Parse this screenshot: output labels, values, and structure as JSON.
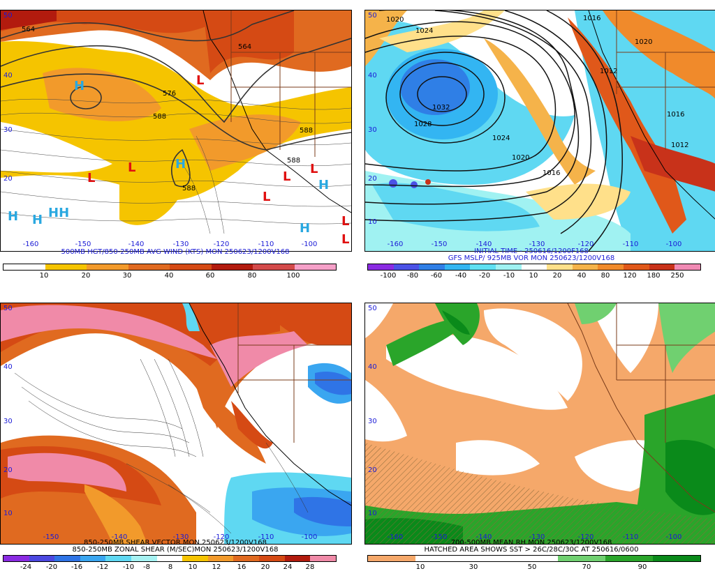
{
  "panels": {
    "tl": {
      "caption": "500MB HGT/850-250MB AVG WIND (KTS) MON 250623/1200V168",
      "contours": [
        "564",
        "576",
        "588",
        "588",
        "564",
        "588",
        "588"
      ],
      "colorbar": {
        "colors": [
          "#ffffff",
          "#f5c400",
          "#f29a2b",
          "#e06a20",
          "#d54a14",
          "#b21b0e",
          "#d34a4a",
          "#f5a0c8"
        ],
        "labels": [
          "10",
          "20",
          "30",
          "40",
          "60",
          "80",
          "100"
        ]
      },
      "lat_labels": [
        "50",
        "40",
        "30",
        "20"
      ],
      "lon_labels": [
        "-160",
        "-150",
        "-140",
        "-130",
        "-120",
        "-110",
        "-100"
      ]
    },
    "tr": {
      "caption_lines": [
        "INITIAL TIME - 250616/1200F168",
        "GFS MSLP/ 925MB VOR MON 250623/1200V168"
      ],
      "contours": [
        "1020",
        "1024",
        "1032",
        "1028",
        "1024",
        "1020",
        "1016",
        "1016",
        "1012",
        "1012",
        "1016",
        "1020"
      ],
      "colorbar": {
        "colors": [
          "#8a2be2",
          "#4b52e6",
          "#2f7fe6",
          "#33b5f2",
          "#5fe0f2",
          "#a0f2f2",
          "#ffffff",
          "#ffe08a",
          "#f5b34a",
          "#f08a2b",
          "#e0581a",
          "#c8321a",
          "#f08ab4"
        ],
        "labels": [
          "-100",
          "-80",
          "-60",
          "-40",
          "-20",
          "-10",
          "10",
          "20",
          "40",
          "80",
          "120",
          "180",
          "250"
        ]
      },
      "lat_labels": [
        "50",
        "40",
        "30",
        "20",
        "10"
      ],
      "lon_labels": [
        "-160",
        "-150",
        "-140",
        "-130",
        "-120",
        "-110",
        "-100"
      ]
    },
    "bl": {
      "caption_lines": [
        "850-250MB SHEAR VECTOR MON 250623/1200V168",
        "850-250MB ZONAL SHEAR (M/SEC)MON 250623/1200V168"
      ],
      "colorbar": {
        "colors": [
          "#8a2be2",
          "#4c48e0",
          "#2f74e6",
          "#3aa6f0",
          "#5fd8f2",
          "#a6f2f2",
          "#ffffff",
          "#f5c400",
          "#f29a2b",
          "#e06a20",
          "#d54a14",
          "#b21b0e",
          "#f08aa8"
        ],
        "labels": [
          "-24",
          "-20",
          "-16",
          "-12",
          "-10",
          "-8",
          "8",
          "10",
          "12",
          "16",
          "20",
          "24",
          "28"
        ]
      },
      "lat_labels": [
        "50",
        "40",
        "30",
        "20",
        "10"
      ],
      "lon_labels": [
        "-150",
        "-140",
        "-130",
        "-120",
        "-110",
        "-100"
      ]
    },
    "br": {
      "caption_lines": [
        "700-500MB MEAN RH MON 250623/1200V168",
        "HATCHED AREA SHOWS SST > 26C/28C/30C AT 250616/0600"
      ],
      "colorbar": {
        "colors": [
          "#f5a86a",
          "#ffffff",
          "#ffffff",
          "#ffffff",
          "#70d070",
          "#2aa52a",
          "#0a8a1a"
        ],
        "labels": [
          "10",
          "30",
          "50",
          "70",
          "90"
        ]
      },
      "lat_labels": [
        "50",
        "40",
        "30",
        "20",
        "10"
      ],
      "lon_labels": [
        "-160",
        "-150",
        "-140",
        "-130",
        "-120",
        "-110",
        "-100"
      ]
    }
  }
}
